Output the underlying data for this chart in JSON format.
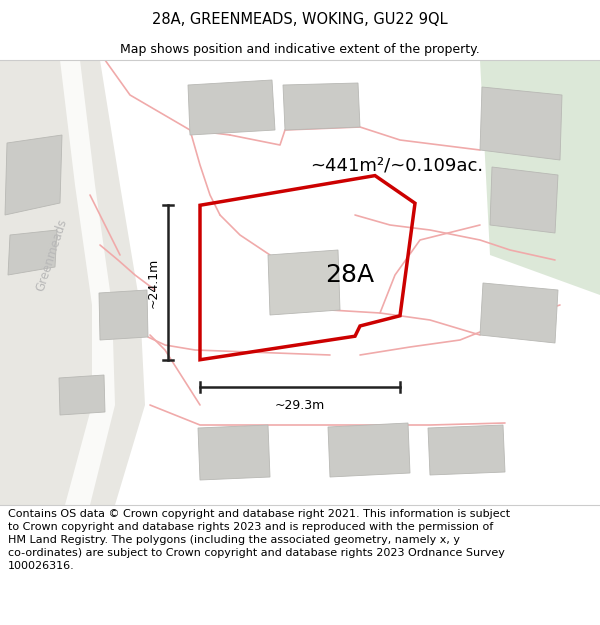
{
  "title": "28A, GREENMEADS, WOKING, GU22 9QL",
  "subtitle": "Map shows position and indicative extent of the property.",
  "area_label": "~441m²/~0.109ac.",
  "plot_label": "28A",
  "dim_h": "~24.1m",
  "dim_w": "~29.3m",
  "street_label": "Greenmeads",
  "footer_line1": "Contains OS data © Crown copyright and database right 2021. This information is subject",
  "footer_line2": "to Crown copyright and database rights 2023 and is reproduced with the permission of",
  "footer_line3": "HM Land Registry. The polygons (including the associated geometry, namely x, y",
  "footer_line4": "co-ordinates) are subject to Crown copyright and database rights 2023 Ordnance Survey",
  "footer_line5": "100026316.",
  "map_bg": "#f2f1ee",
  "road_bg": "#e8e7e2",
  "white_road": "#fafaf8",
  "building_fill": "#cbcbc7",
  "building_edge": "#b8b8b4",
  "green_fill": "#dce8d8",
  "red_plot": "#cc0000",
  "pink_road": "#f0aaaa",
  "dim_line_color": "#222222",
  "title_fontsize": 10.5,
  "subtitle_fontsize": 9,
  "footer_fontsize": 8,
  "area_fontsize": 13,
  "plot_fontsize": 18,
  "street_fontsize": 8.5,
  "dim_fontsize": 9
}
